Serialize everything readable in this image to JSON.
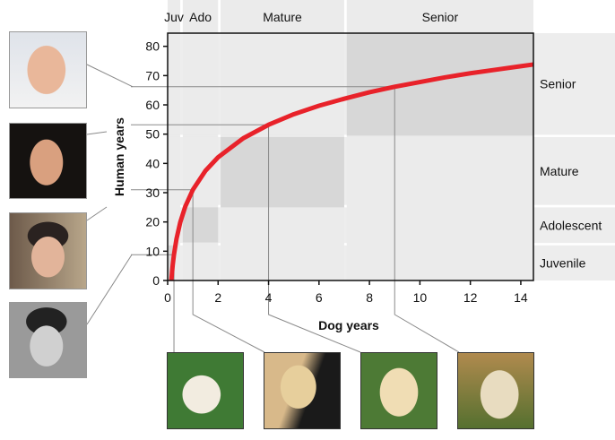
{
  "chart_data": {
    "type": "line",
    "xlabel": "Dog years",
    "ylabel": "Human years",
    "xlim": [
      0,
      14.5
    ],
    "ylim": [
      0,
      84.5
    ],
    "xticks": [
      0,
      2,
      4,
      6,
      8,
      10,
      12,
      14
    ],
    "yticks": [
      0,
      10,
      20,
      30,
      40,
      50,
      60,
      70,
      80
    ],
    "grid": false,
    "series": [
      {
        "color": "#e8222a",
        "x": [
          0.145,
          0.2,
          0.25,
          0.35,
          0.5,
          0.7,
          1,
          1.5,
          2,
          3,
          4,
          5,
          6,
          7,
          8,
          9,
          10,
          11,
          12,
          13,
          14,
          14.5
        ],
        "y": [
          0,
          5.2,
          8.8,
          14.2,
          19.9,
          25.3,
          31,
          37.5,
          42.1,
          48.6,
          53.2,
          56.8,
          59.7,
          62.1,
          64.3,
          66.2,
          67.8,
          69.4,
          70.8,
          72.0,
          73.2,
          73.8
        ]
      }
    ],
    "dog_stages": [
      {
        "label": "Juv",
        "x": [
          0,
          0.5
        ],
        "shade_x": [
          0,
          0.25
        ],
        "shade_y": [
          0,
          12
        ]
      },
      {
        "label": "Ado",
        "x": [
          0.6,
          2
        ],
        "shade_x": [
          0.6,
          2
        ],
        "shade_y": [
          13,
          25
        ]
      },
      {
        "label": "Mature",
        "x": [
          2.1,
          7
        ],
        "shade_x": [
          2.1,
          7
        ],
        "shade_y": [
          25,
          49
        ]
      },
      {
        "label": "Senior",
        "x": [
          7.1,
          14.5
        ],
        "shade_x": [
          7.1,
          14.5
        ],
        "shade_y": [
          49.5,
          84.5
        ]
      }
    ],
    "human_stages": [
      {
        "label": "Juvenile",
        "y": [
          0,
          12
        ]
      },
      {
        "label": "Adolescent",
        "y": [
          12.8,
          25
        ]
      },
      {
        "label": "Mature",
        "y": [
          25.8,
          49
        ]
      },
      {
        "label": "Senior",
        "y": [
          49.8,
          84.5
        ]
      }
    ],
    "highlighted_points": [
      {
        "x": 0.25,
        "y": 8.8
      },
      {
        "x": 1,
        "y": 31
      },
      {
        "x": 4,
        "y": 53.2
      },
      {
        "x": 9,
        "y": 66.2
      }
    ]
  },
  "photos": {
    "human": [
      "human-senior-photo",
      "human-mature-photo",
      "human-adolescent-photo",
      "human-juvenile-photo"
    ],
    "dog": [
      "dog-puppy-photo",
      "dog-adolescent-photo",
      "dog-mature-photo",
      "dog-senior-photo"
    ]
  }
}
